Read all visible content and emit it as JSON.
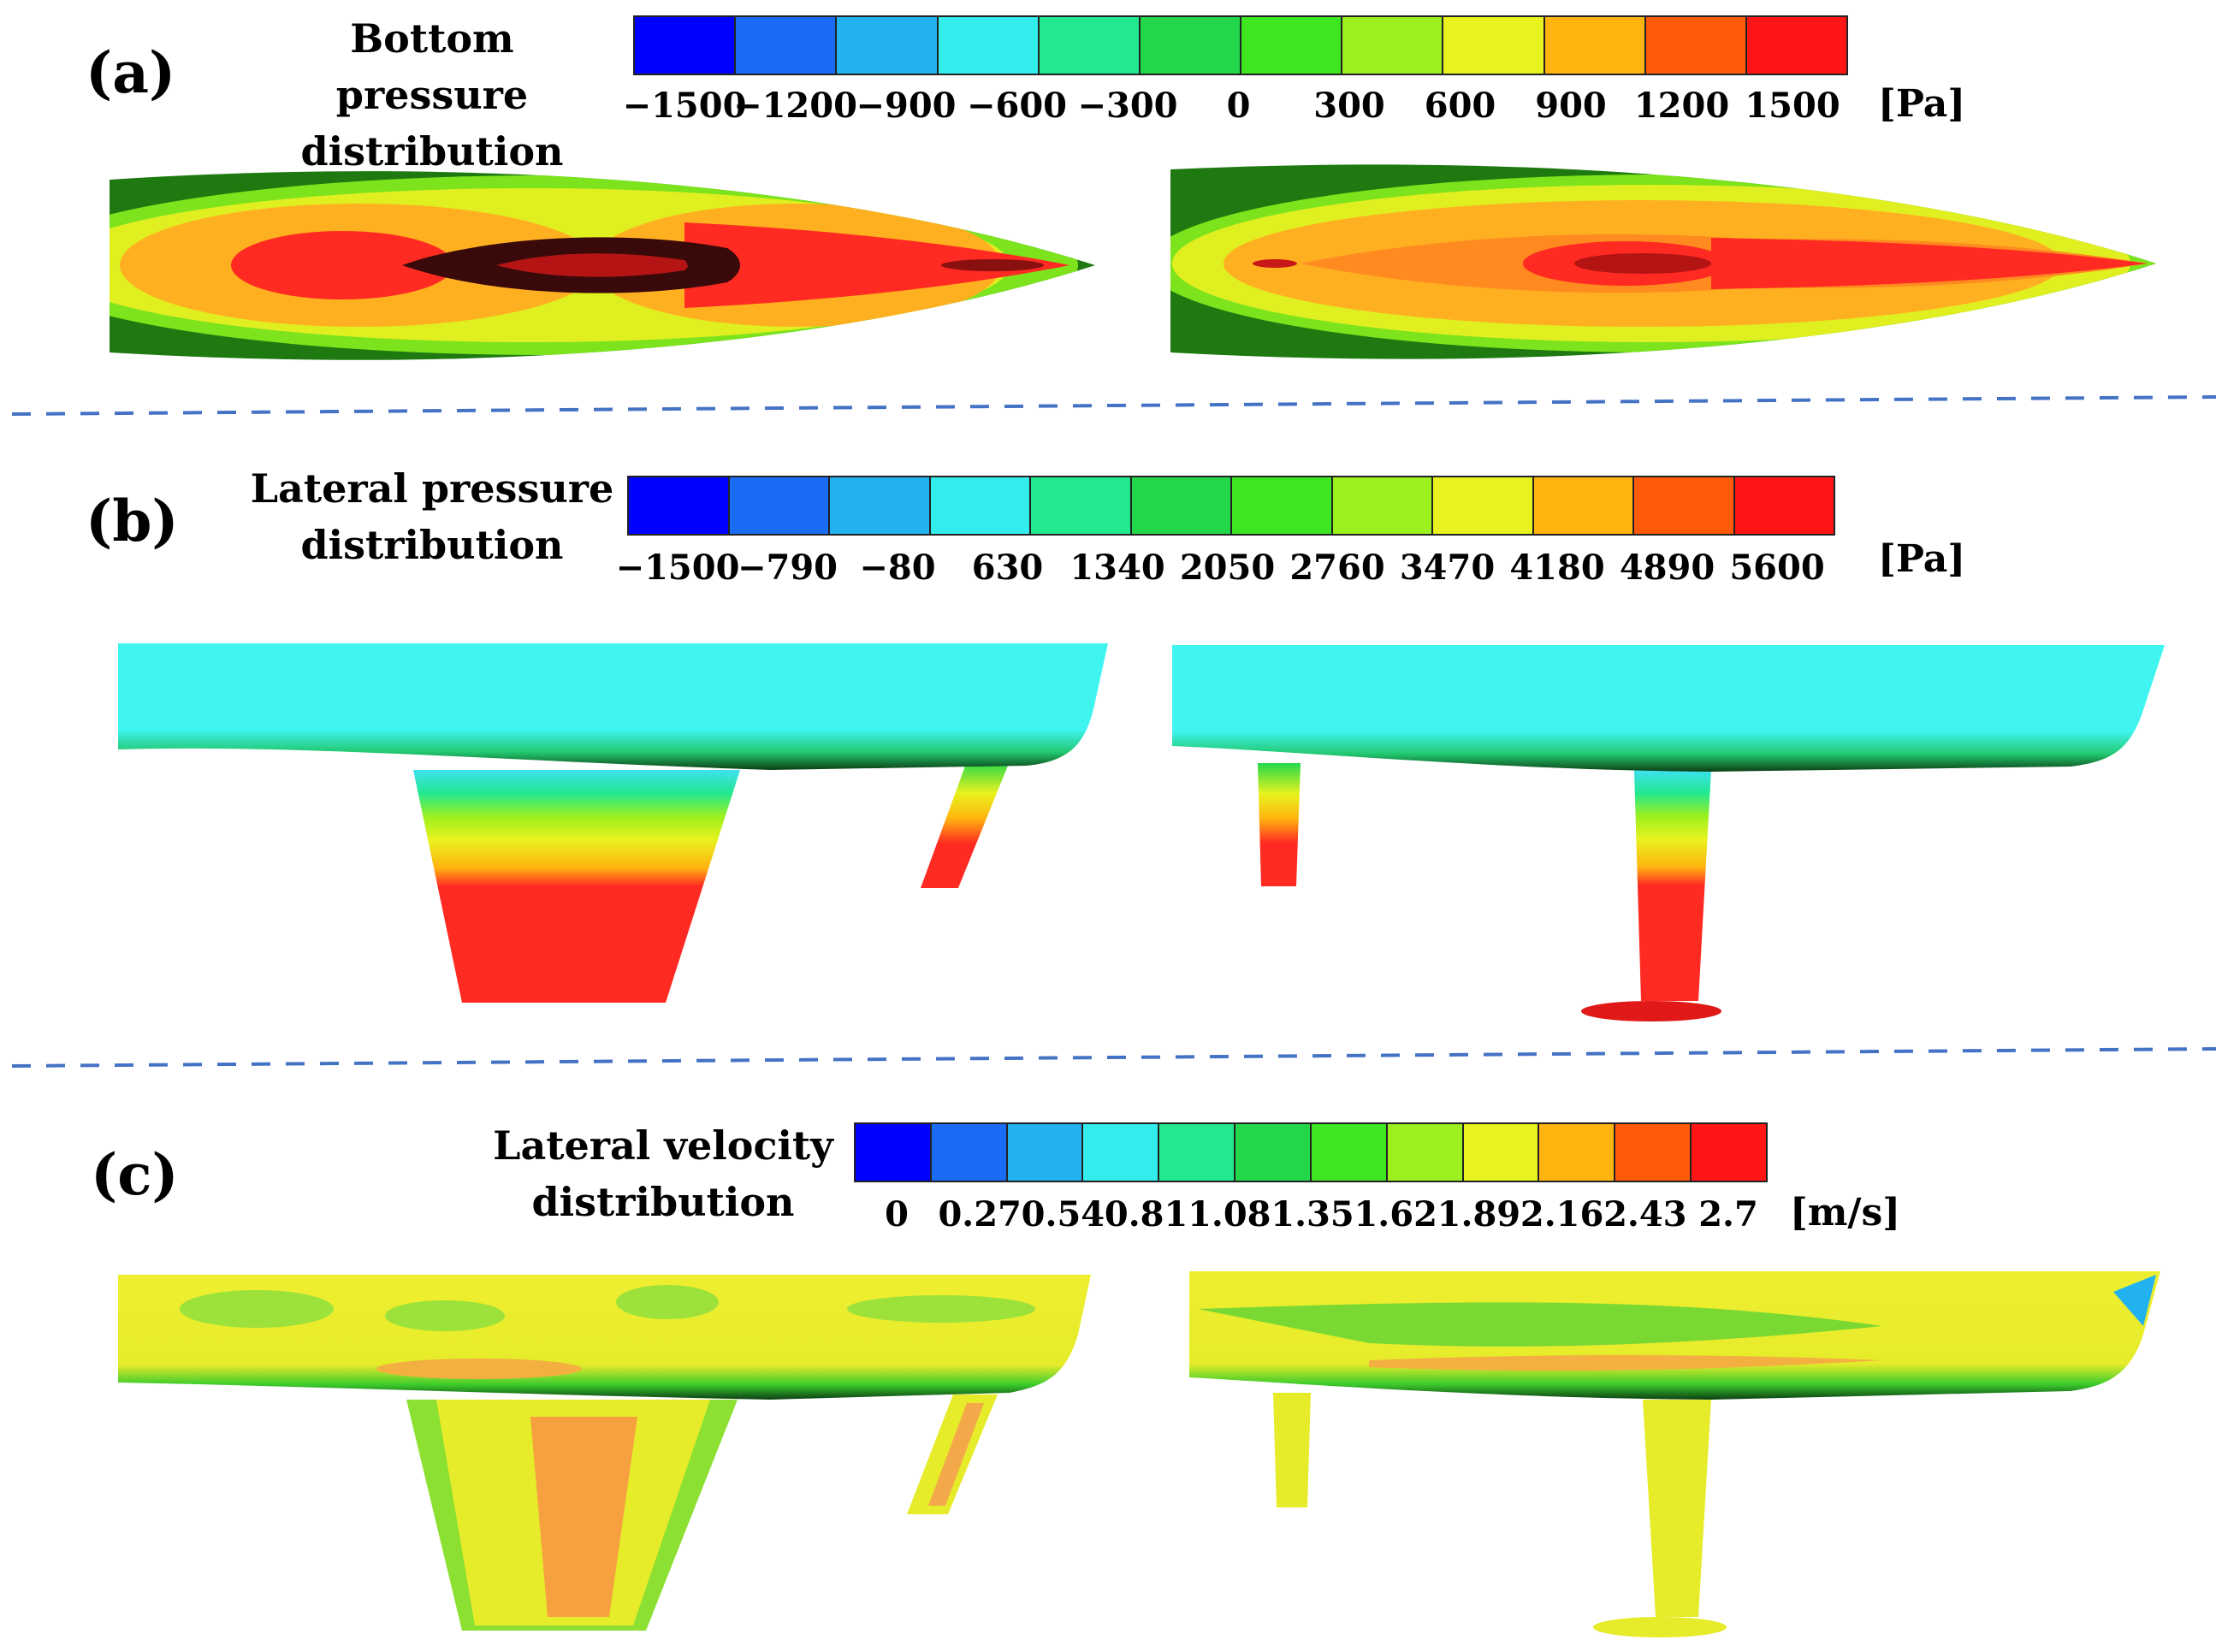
{
  "panels": [
    {
      "letter": "(a)",
      "title_line1": "Bottom pressure",
      "title_line2": "distribution",
      "unit": "[Pa]",
      "ticks": [
        "−1500",
        "−1200",
        "−900",
        "−600",
        "−300",
        "0",
        "300",
        "600",
        "900",
        "1200",
        "1500"
      ]
    },
    {
      "letter": "(b)",
      "title_line1": "Lateral pressure",
      "title_line2": "distribution",
      "unit": "[Pa]",
      "ticks": [
        "−1500",
        "−790",
        "−80",
        "630",
        "1340",
        "2050",
        "2760",
        "3470",
        "4180",
        "4890",
        "5600"
      ]
    },
    {
      "letter": "(c)",
      "title_line1": "Lateral velocity",
      "title_line2": "distribution",
      "unit": "[m/s]",
      "ticks": [
        "0",
        "0.27",
        "0.54",
        "0.81",
        "1.08",
        "1.35",
        "1.62",
        "1.89",
        "2.16",
        "2.43",
        "2.7"
      ]
    }
  ],
  "colormap": [
    "#0000ff",
    "#1a6cf5",
    "#22b2f0",
    "#33ecec",
    "#22e890",
    "#22d84a",
    "#3ee622",
    "#9cf01e",
    "#e8f21e",
    "#ffb410",
    "#ff5a0a",
    "#ff1515"
  ],
  "divider_color": "#4472c4"
}
